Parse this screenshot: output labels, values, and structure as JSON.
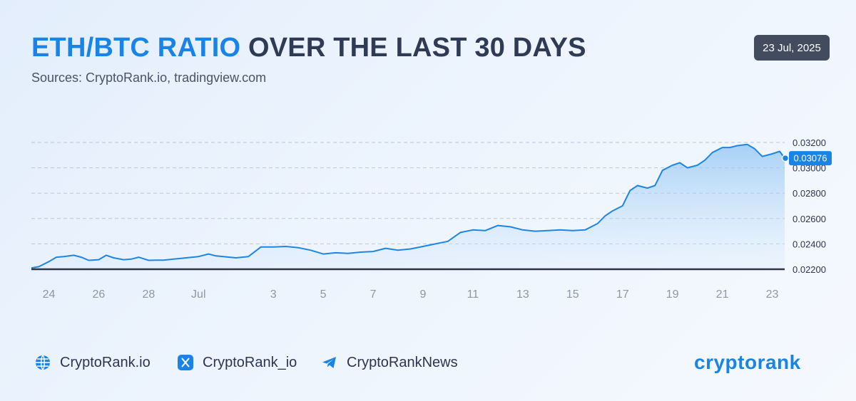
{
  "header": {
    "title_accent": "ETH/BTC RATIO",
    "title_rest": "OVER THE LAST 30 DAYS",
    "subtitle": "Sources: CryptoRank.io, tradingview.com",
    "date_badge": "23 Jul, 2025"
  },
  "footer": {
    "website": "CryptoRank.io",
    "x_handle": "CryptoRank_io",
    "telegram": "CryptoRankNews",
    "logo": "cryptorank"
  },
  "colors": {
    "accent": "#1a84e6",
    "line": "#1e86e0",
    "title_dark": "#2f3a55",
    "badge_bg": "#434b5e"
  },
  "chart_data": {
    "type": "area",
    "title": "ETH/BTC RATIO OVER THE LAST 30 DAYS",
    "xlabel": "",
    "ylabel": "",
    "x_tick_labels": [
      "24",
      "26",
      "28",
      "Jul",
      "3",
      "5",
      "7",
      "9",
      "11",
      "13",
      "15",
      "17",
      "19",
      "21",
      "23"
    ],
    "x_tick_days": [
      24,
      26,
      28,
      30,
      33,
      35,
      37,
      39,
      41,
      43,
      45,
      47,
      49,
      51,
      53
    ],
    "y_tick_labels": [
      "0.02200",
      "0.02400",
      "0.02600",
      "0.02800",
      "0.03000",
      "0.03200"
    ],
    "ylim": [
      0.022,
      0.032
    ],
    "grid": "horizontal-dashed",
    "current_value_label": "0.03076",
    "series": [
      {
        "x": [
          23.3,
          23.6,
          24.0,
          24.3,
          24.6,
          25.0,
          25.3,
          25.6,
          26.0,
          26.3,
          26.6,
          27.0,
          27.3,
          27.6,
          28.0,
          28.3,
          28.6,
          29.0,
          29.5,
          30.0,
          30.4,
          30.7,
          31.0,
          31.5,
          32.0,
          32.5,
          33.0,
          33.5,
          34.0,
          34.5,
          35.0,
          35.5,
          36.0,
          36.5,
          37.0,
          37.5,
          38.0,
          38.5,
          39.0,
          39.5,
          40.0,
          40.5,
          41.0,
          41.5,
          42.0,
          42.5,
          43.0,
          43.5,
          44.0,
          44.5,
          45.0,
          45.5,
          46.0,
          46.3,
          46.6,
          47.0,
          47.3,
          47.6,
          48.0,
          48.3,
          48.6,
          49.0,
          49.3,
          49.6,
          50.0,
          50.3,
          50.6,
          51.0,
          51.3,
          51.6,
          52.0,
          52.3,
          52.6,
          53.0,
          53.3,
          53.5
        ],
        "y": [
          0.0221,
          0.0222,
          0.0226,
          0.02295,
          0.023,
          0.0231,
          0.02295,
          0.0227,
          0.02275,
          0.0231,
          0.0229,
          0.02275,
          0.0228,
          0.02295,
          0.0227,
          0.02272,
          0.02272,
          0.0228,
          0.0229,
          0.023,
          0.0232,
          0.02305,
          0.023,
          0.0229,
          0.023,
          0.02375,
          0.02375,
          0.0238,
          0.0237,
          0.0235,
          0.0232,
          0.0233,
          0.02325,
          0.02335,
          0.0234,
          0.02365,
          0.0235,
          0.0236,
          0.0238,
          0.024,
          0.0242,
          0.0249,
          0.0251,
          0.02505,
          0.02545,
          0.02535,
          0.0251,
          0.025,
          0.02505,
          0.0251,
          0.02505,
          0.0251,
          0.0256,
          0.0262,
          0.0266,
          0.027,
          0.0282,
          0.0286,
          0.0284,
          0.0286,
          0.0298,
          0.0302,
          0.0304,
          0.03,
          0.0302,
          0.0306,
          0.0312,
          0.0316,
          0.0316,
          0.03175,
          0.03185,
          0.0315,
          0.0309,
          0.0311,
          0.0313,
          0.03076
        ]
      }
    ]
  }
}
